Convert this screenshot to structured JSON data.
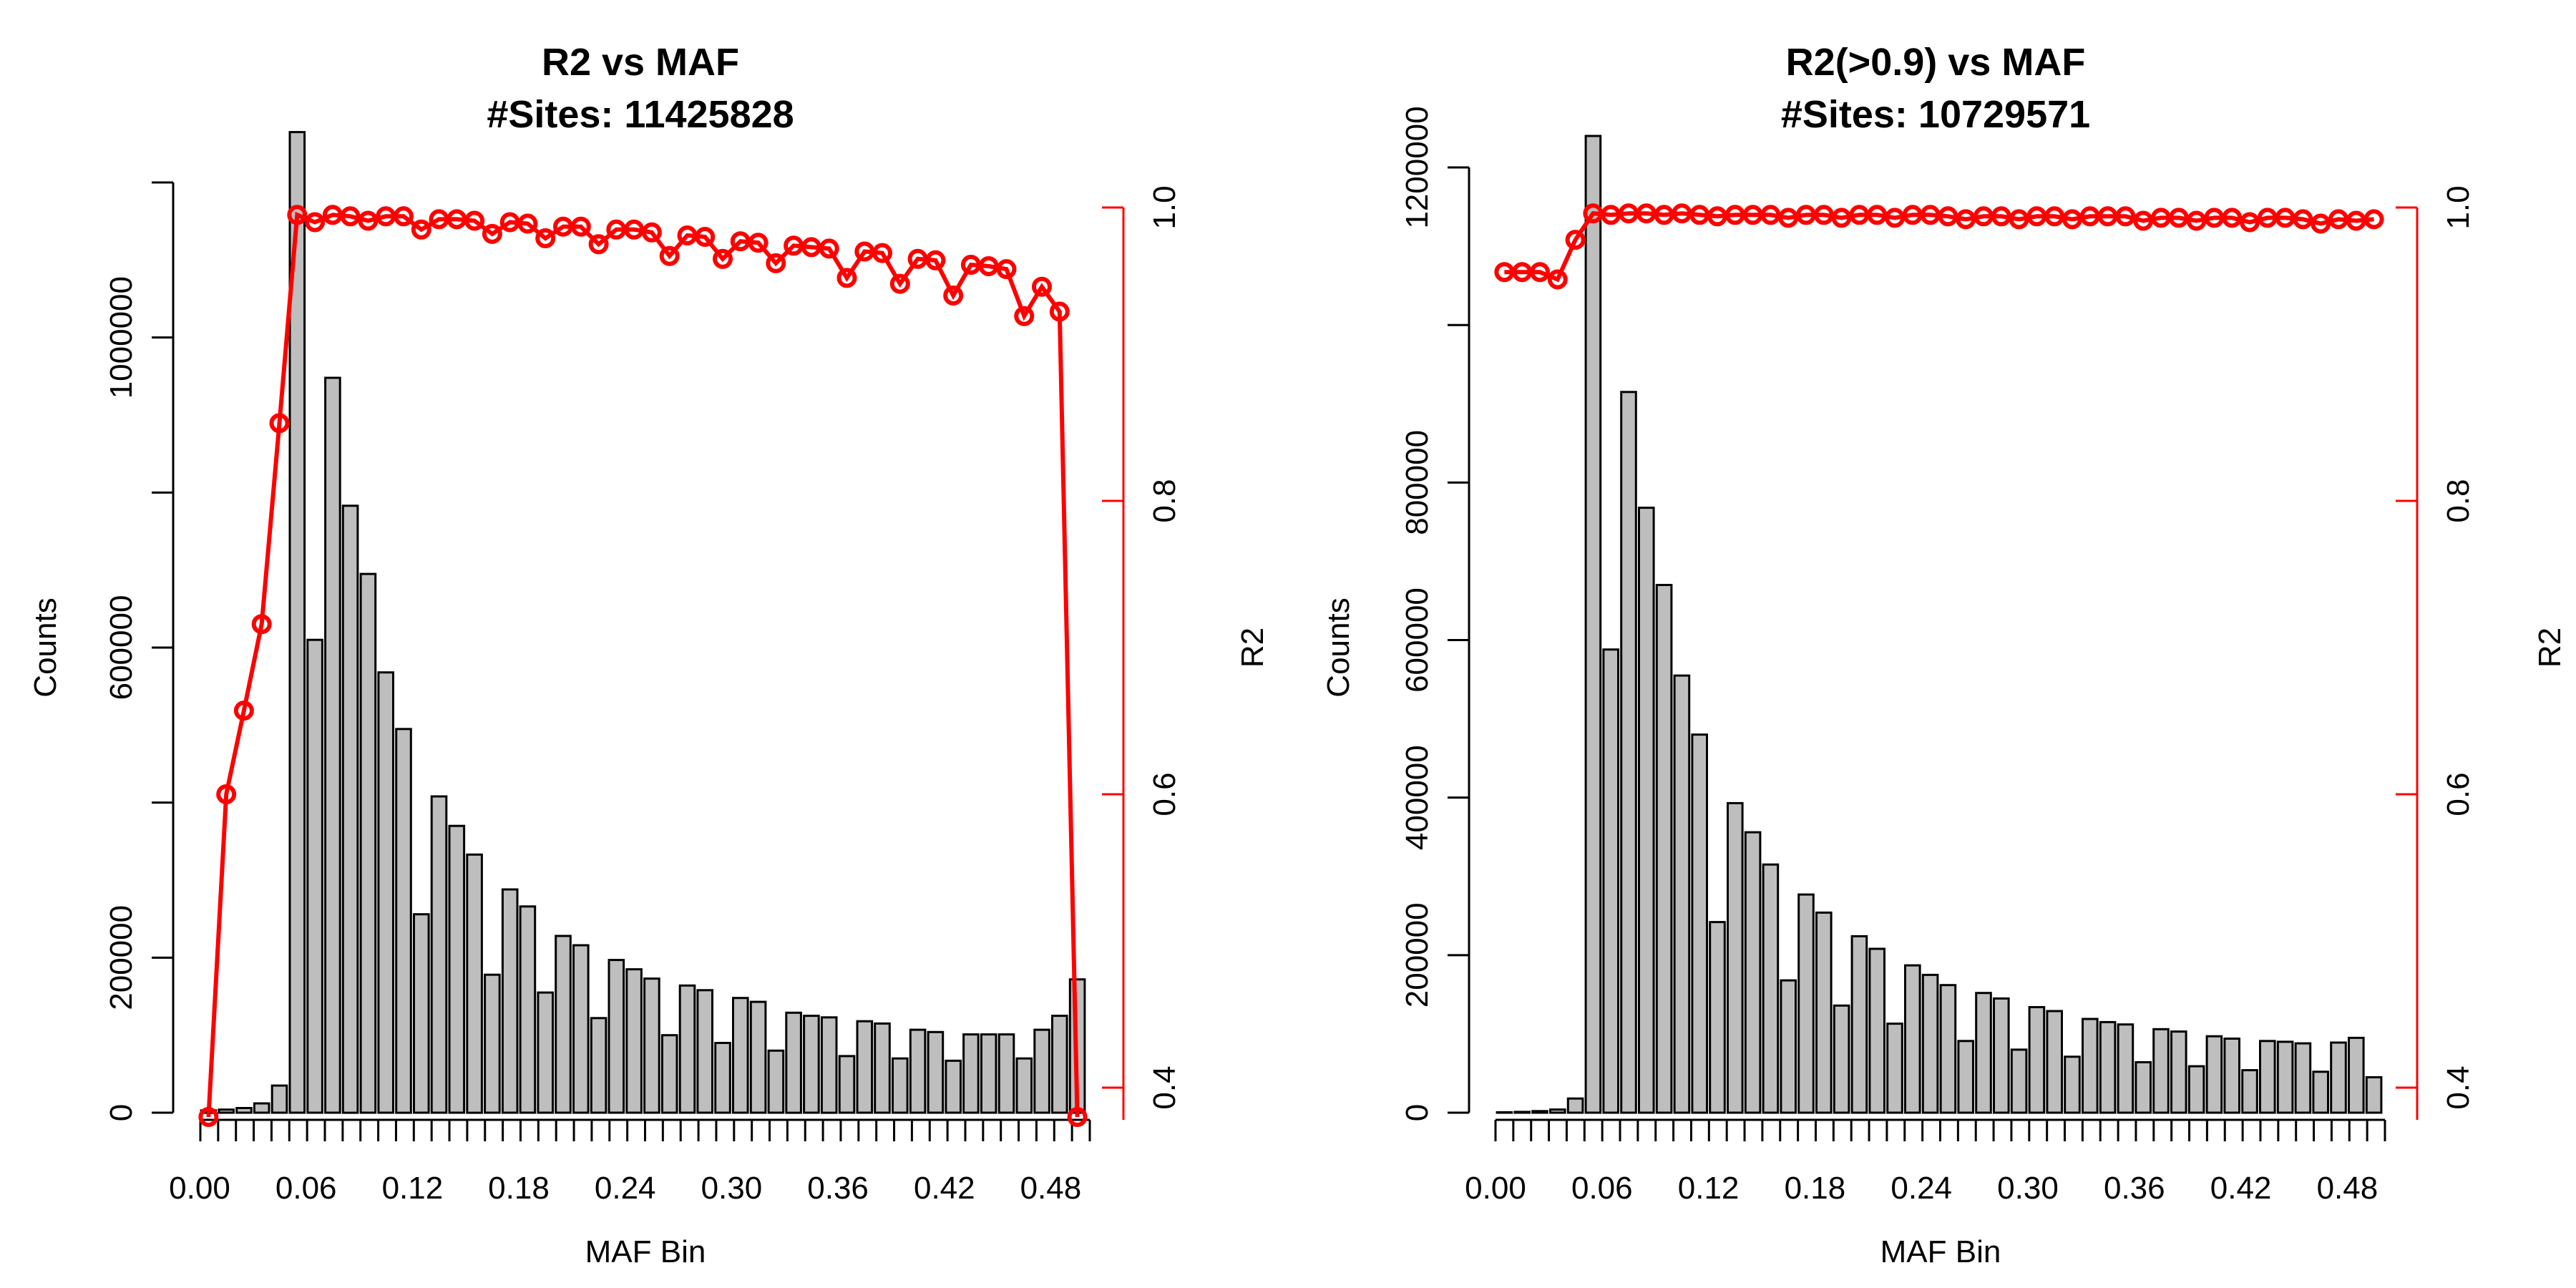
{
  "chart_data": [
    {
      "type": "bar",
      "title_line1": "R2 vs MAF",
      "title_line2": "#Sites:  11425828",
      "xlabel": "MAF Bin",
      "ylabel": "Counts",
      "y2label": "R2",
      "xticks": [
        "0.00",
        "0.06",
        "0.12",
        "0.18",
        "0.24",
        "0.30",
        "0.36",
        "0.42",
        "0.48"
      ],
      "yticks": [
        "0",
        "200000",
        "600000",
        "1000000"
      ],
      "ytick_values": [
        0,
        200000,
        400000,
        600000,
        800000,
        1000000,
        1200000
      ],
      "ytick_labels": [
        "0",
        "200000",
        "",
        "600000",
        "",
        "1000000",
        ""
      ],
      "y2ticks": [
        "0.4",
        "0.6",
        "0.8",
        "1.0"
      ],
      "y2tick_values": [
        0.4,
        0.6,
        0.8,
        1.0
      ],
      "ylim": [
        0,
        1260000
      ],
      "y2lim": [
        0.38,
        1.0
      ],
      "bin_width": 0.01,
      "counts": [
        3000,
        4000,
        6000,
        12000,
        35000,
        1265000,
        610000,
        948000,
        783000,
        695000,
        568000,
        495000,
        256000,
        408000,
        370000,
        333000,
        178000,
        288000,
        266000,
        155000,
        228000,
        216000,
        122000,
        197000,
        185000,
        173000,
        100000,
        164000,
        158000,
        90000,
        148000,
        143000,
        80000,
        129000,
        125000,
        123000,
        73000,
        118000,
        115000,
        70000,
        107000,
        104000,
        67000,
        101000,
        101000,
        101000,
        70000,
        107000,
        125000,
        172000
      ],
      "r2_x": [
        0.005,
        0.015,
        0.025,
        0.035,
        0.045,
        0.055,
        0.065,
        0.075,
        0.085,
        0.095,
        0.105,
        0.115,
        0.125,
        0.135,
        0.145,
        0.155,
        0.165,
        0.175,
        0.185,
        0.195,
        0.205,
        0.215,
        0.225,
        0.235,
        0.245,
        0.255,
        0.265,
        0.275,
        0.285,
        0.295,
        0.305,
        0.315,
        0.325,
        0.335,
        0.345,
        0.355,
        0.365,
        0.375,
        0.385,
        0.395,
        0.405,
        0.415,
        0.425,
        0.435,
        0.445,
        0.455,
        0.465,
        0.475,
        0.485,
        0.495
      ],
      "r2": [
        0.38,
        0.6,
        0.657,
        0.716,
        0.853,
        0.995,
        0.99,
        0.995,
        0.994,
        0.991,
        0.994,
        0.994,
        0.985,
        0.992,
        0.992,
        0.991,
        0.982,
        0.99,
        0.989,
        0.979,
        0.987,
        0.987,
        0.975,
        0.985,
        0.985,
        0.983,
        0.967,
        0.981,
        0.98,
        0.965,
        0.977,
        0.976,
        0.962,
        0.974,
        0.973,
        0.972,
        0.952,
        0.97,
        0.969,
        0.948,
        0.965,
        0.964,
        0.94,
        0.961,
        0.96,
        0.958,
        0.926,
        0.946,
        0.929,
        0.38
      ],
      "legend": "none",
      "grid": false
    },
    {
      "type": "bar",
      "title_line1": "R2(>0.9) vs MAF",
      "title_line2": "#Sites:  10729571",
      "xlabel": "MAF Bin",
      "ylabel": "Counts",
      "y2label": "R2",
      "xticks": [
        "0.00",
        "0.06",
        "0.12",
        "0.18",
        "0.24",
        "0.30",
        "0.36",
        "0.42",
        "0.48"
      ],
      "yticks": [
        "0",
        "200000",
        "400000",
        "600000",
        "800000",
        "1200000"
      ],
      "ytick_values": [
        0,
        200000,
        400000,
        600000,
        800000,
        1000000,
        1200000
      ],
      "ytick_labels": [
        "0",
        "200000",
        "400000",
        "600000",
        "800000",
        "",
        "1200000"
      ],
      "y2ticks": [
        "0.4",
        "0.6",
        "0.8",
        "1.0"
      ],
      "y2tick_values": [
        0.4,
        0.6,
        0.8,
        1.0
      ],
      "ylim": [
        0,
        1240000
      ],
      "y2lim": [
        0.38,
        1.0
      ],
      "bin_width": 0.01,
      "counts": [
        500,
        1000,
        2000,
        4000,
        18000,
        1240000,
        588000,
        915000,
        768000,
        670000,
        555000,
        480000,
        242000,
        393000,
        356000,
        315000,
        168000,
        277000,
        254000,
        136000,
        224000,
        208000,
        113000,
        187000,
        175000,
        162000,
        91000,
        152000,
        145000,
        80000,
        134000,
        129000,
        71000,
        119000,
        115000,
        112000,
        64000,
        106000,
        103000,
        59000,
        97000,
        94000,
        54000,
        91000,
        90000,
        88000,
        52000,
        89000,
        95000,
        45000
      ],
      "r2_x": [
        0.005,
        0.015,
        0.025,
        0.035,
        0.045,
        0.055,
        0.065,
        0.075,
        0.085,
        0.095,
        0.105,
        0.115,
        0.125,
        0.135,
        0.145,
        0.155,
        0.165,
        0.175,
        0.185,
        0.195,
        0.205,
        0.215,
        0.225,
        0.235,
        0.245,
        0.255,
        0.265,
        0.275,
        0.285,
        0.295,
        0.305,
        0.315,
        0.325,
        0.335,
        0.345,
        0.355,
        0.365,
        0.375,
        0.385,
        0.395,
        0.405,
        0.415,
        0.425,
        0.435,
        0.445,
        0.455,
        0.465,
        0.475,
        0.485,
        0.495
      ],
      "r2": [
        0.956,
        0.956,
        0.956,
        0.951,
        0.978,
        0.996,
        0.995,
        0.996,
        0.996,
        0.995,
        0.996,
        0.995,
        0.994,
        0.995,
        0.995,
        0.995,
        0.993,
        0.995,
        0.995,
        0.993,
        0.995,
        0.995,
        0.993,
        0.995,
        0.995,
        0.994,
        0.992,
        0.994,
        0.994,
        0.992,
        0.994,
        0.994,
        0.992,
        0.994,
        0.994,
        0.994,
        0.991,
        0.993,
        0.993,
        0.991,
        0.993,
        0.993,
        0.99,
        0.993,
        0.993,
        0.992,
        0.989,
        0.992,
        0.991,
        0.992
      ],
      "legend": "none",
      "grid": false
    }
  ]
}
